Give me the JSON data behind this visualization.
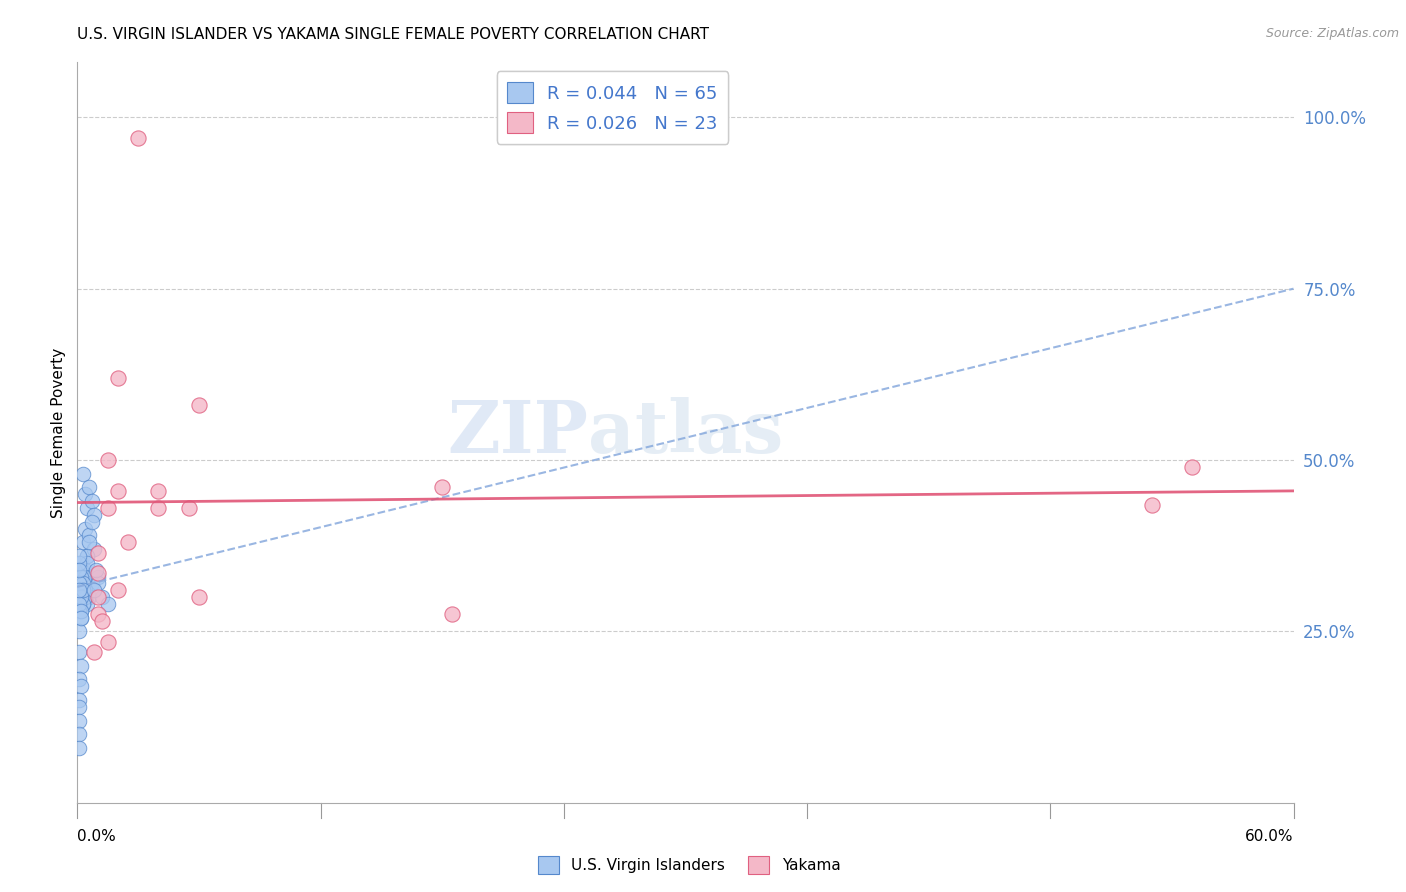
{
  "title": "U.S. VIRGIN ISLANDER VS YAKAMA SINGLE FEMALE POVERTY CORRELATION CHART",
  "source": "Source: ZipAtlas.com",
  "ylabel": "Single Female Poverty",
  "y_tick_labels": [
    "100.0%",
    "75.0%",
    "50.0%",
    "25.0%"
  ],
  "y_tick_values": [
    1.0,
    0.75,
    0.5,
    0.25
  ],
  "xlim": [
    0.0,
    0.6
  ],
  "ylim": [
    0.0,
    1.08
  ],
  "legend1_label": "R = 0.044   N = 65",
  "legend2_label": "R = 0.026   N = 23",
  "legend_bottom1": "U.S. Virgin Islanders",
  "legend_bottom2": "Yakama",
  "blue_color": "#a8c8f0",
  "pink_color": "#f4b8c8",
  "blue_edge": "#5588cc",
  "pink_edge": "#e06080",
  "trend_blue_color": "#88aadd",
  "trend_pink_color": "#e05577",
  "watermark_zip": "ZIP",
  "watermark_atlas": "atlas",
  "blue_scatter_x": [
    0.003,
    0.004,
    0.005,
    0.006,
    0.007,
    0.008,
    0.003,
    0.004,
    0.005,
    0.006,
    0.007,
    0.008,
    0.002,
    0.003,
    0.004,
    0.005,
    0.006,
    0.007,
    0.002,
    0.003,
    0.004,
    0.005,
    0.006,
    0.002,
    0.003,
    0.004,
    0.005,
    0.002,
    0.003,
    0.004,
    0.002,
    0.003,
    0.004,
    0.002,
    0.003,
    0.001,
    0.002,
    0.003,
    0.001,
    0.002,
    0.003,
    0.001,
    0.002,
    0.001,
    0.002,
    0.001,
    0.002,
    0.001,
    0.002,
    0.001,
    0.002,
    0.001,
    0.001,
    0.001,
    0.001,
    0.001,
    0.001,
    0.001,
    0.001,
    0.01,
    0.01,
    0.012,
    0.015,
    0.008,
    0.009
  ],
  "blue_scatter_y": [
    0.48,
    0.45,
    0.43,
    0.46,
    0.44,
    0.42,
    0.38,
    0.4,
    0.36,
    0.39,
    0.41,
    0.37,
    0.35,
    0.33,
    0.34,
    0.36,
    0.38,
    0.32,
    0.34,
    0.32,
    0.33,
    0.35,
    0.3,
    0.31,
    0.3,
    0.31,
    0.29,
    0.33,
    0.32,
    0.3,
    0.31,
    0.29,
    0.3,
    0.28,
    0.31,
    0.32,
    0.3,
    0.29,
    0.28,
    0.3,
    0.31,
    0.29,
    0.27,
    0.31,
    0.28,
    0.25,
    0.27,
    0.22,
    0.2,
    0.18,
    0.17,
    0.15,
    0.14,
    0.12,
    0.1,
    0.08,
    0.35,
    0.36,
    0.34,
    0.33,
    0.32,
    0.3,
    0.29,
    0.31,
    0.34
  ],
  "pink_scatter_x": [
    0.03,
    0.02,
    0.06,
    0.04,
    0.015,
    0.055,
    0.04,
    0.02,
    0.015,
    0.01,
    0.025,
    0.02,
    0.06,
    0.18,
    0.185,
    0.55,
    0.53,
    0.01,
    0.01,
    0.01,
    0.012,
    0.008,
    0.015
  ],
  "pink_scatter_y": [
    0.97,
    0.62,
    0.58,
    0.455,
    0.5,
    0.43,
    0.43,
    0.455,
    0.43,
    0.365,
    0.38,
    0.31,
    0.3,
    0.46,
    0.275,
    0.49,
    0.435,
    0.335,
    0.3,
    0.275,
    0.265,
    0.22,
    0.235
  ],
  "blue_trendline_x": [
    0.0,
    0.6
  ],
  "blue_trendline_y": [
    0.315,
    0.75
  ],
  "pink_trendline_x": [
    0.0,
    0.6
  ],
  "pink_trendline_y": [
    0.438,
    0.455
  ]
}
